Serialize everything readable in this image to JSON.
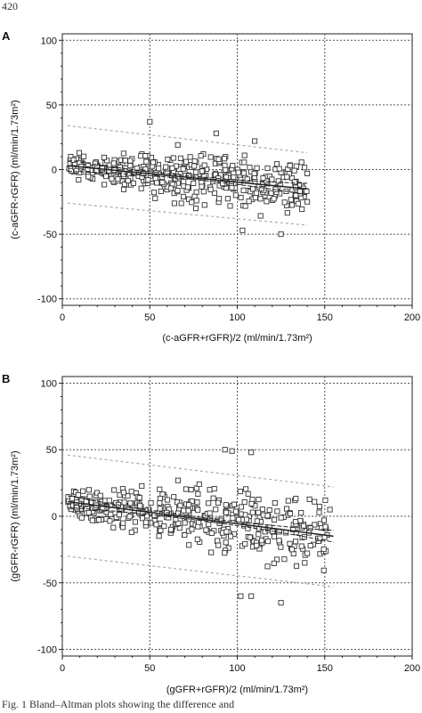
{
  "page_number": "420",
  "caption_text": "Fig. 1   Bland–Altman plots showing the difference and",
  "colors": {
    "marker": "#333333",
    "grid": "#555555",
    "limits": "#aaaaaa",
    "regression": "#222222"
  },
  "chart_data": [
    {
      "panel_label": "A",
      "type": "scatter",
      "xlabel": "(c-aGFR+rGFR)/2 (ml/min/1.73m²)",
      "ylabel": "(c-aGFR-rGFR) (ml/min/1.73m²)",
      "xlim": [
        0,
        200
      ],
      "ylim": [
        -105,
        105
      ],
      "x_ticks": [
        "0",
        "50",
        "100",
        "150",
        "200"
      ],
      "y_ticks": [
        "100",
        "50",
        "0",
        "-50",
        "-100"
      ],
      "grid": true,
      "regression": {
        "x": [
          3,
          140
        ],
        "y": [
          3,
          -15
        ],
        "ci": 2
      },
      "limits_upper": {
        "x": [
          3,
          140
        ],
        "y": [
          34,
          13
        ]
      },
      "limits_lower": {
        "x": [
          3,
          140
        ],
        "y": [
          -26,
          -43
        ]
      },
      "points_generator": {
        "n": 430,
        "x_range": [
          3,
          140
        ],
        "trend": [
          3,
          -15
        ],
        "spread": 13,
        "seed": 11
      },
      "points_extra": [
        [
          50,
          37
        ],
        [
          125,
          -50
        ],
        [
          103,
          -47
        ],
        [
          140,
          -3
        ],
        [
          110,
          22
        ],
        [
          88,
          28
        ]
      ]
    },
    {
      "panel_label": "B",
      "type": "scatter",
      "xlabel": "(gGFR+rGFR)/2 (ml/min/1.73m²)",
      "ylabel": "(gGFR-rGFR) (ml/min/1.73m²)",
      "xlim": [
        0,
        200
      ],
      "ylim": [
        -105,
        105
      ],
      "x_ticks": [
        "0",
        "50",
        "100",
        "150",
        "200"
      ],
      "y_ticks": [
        "100",
        "50",
        "0",
        "-50",
        "-100"
      ],
      "grid": true,
      "regression": {
        "x": [
          3,
          155
        ],
        "y": [
          11,
          -15
        ],
        "ci": 2
      },
      "limits_upper": {
        "x": [
          3,
          155
        ],
        "y": [
          46,
          22
        ]
      },
      "limits_lower": {
        "x": [
          3,
          155
        ],
        "y": [
          -30,
          -53
        ]
      },
      "points_generator": {
        "n": 430,
        "x_range": [
          3,
          152
        ],
        "trend": [
          11,
          -14
        ],
        "spread": 16,
        "seed": 23
      },
      "points_extra": [
        [
          93,
          50
        ],
        [
          97,
          49
        ],
        [
          108,
          48
        ],
        [
          153,
          5
        ],
        [
          125,
          -65
        ],
        [
          102,
          -60
        ],
        [
          108,
          -60
        ]
      ]
    }
  ]
}
